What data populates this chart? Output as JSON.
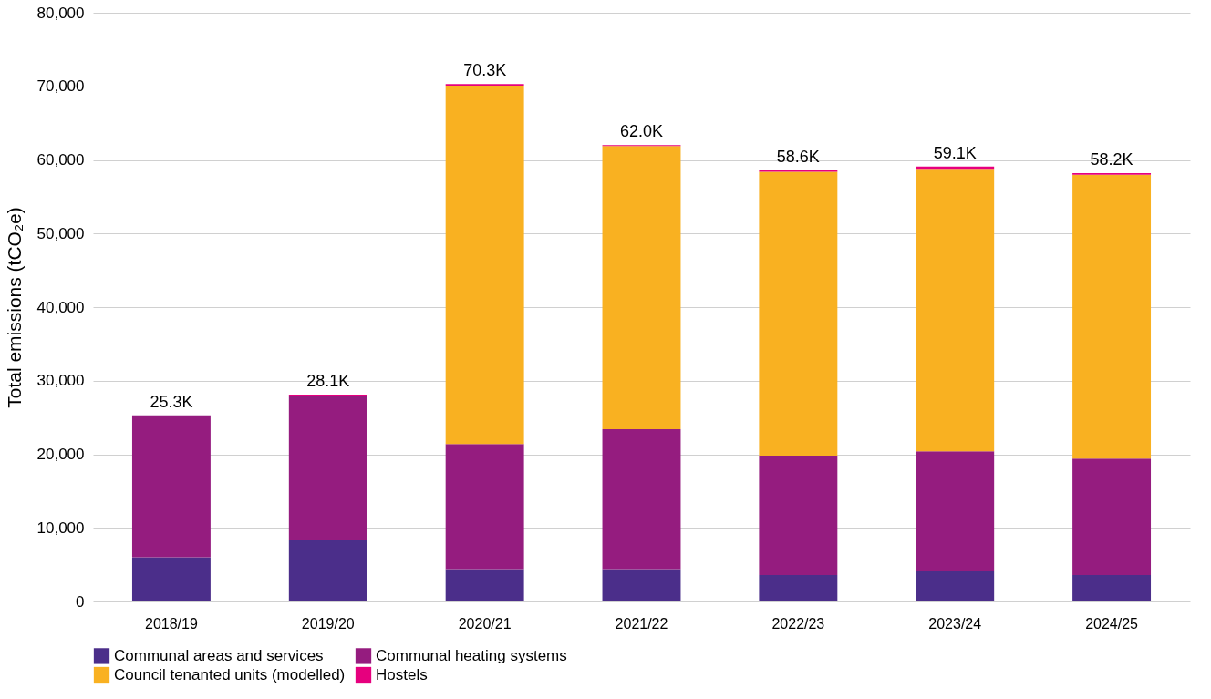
{
  "chart_data": {
    "type": "bar",
    "stacked": true,
    "ylabel": "Total emissions (tCO₂e)",
    "categories": [
      "2018/19",
      "2019/20",
      "2020/21",
      "2021/22",
      "2022/23",
      "2023/24",
      "2024/25"
    ],
    "series": [
      {
        "name": "Communal areas and services",
        "color": "#4b2e8a",
        "values": [
          6000,
          8300,
          4400,
          4400,
          3600,
          4100,
          3600
        ]
      },
      {
        "name": "Communal heating systems",
        "color": "#951c7f",
        "values": [
          19300,
          19600,
          17000,
          19000,
          16200,
          16300,
          15800
        ]
      },
      {
        "name": "Council tenanted units (modelled)",
        "color": "#f9b121",
        "values": [
          0,
          0,
          48700,
          38500,
          38600,
          38400,
          38600
        ]
      },
      {
        "name": "Hostels",
        "color": "#e6007e",
        "values": [
          0,
          200,
          200,
          100,
          200,
          300,
          200
        ]
      }
    ],
    "totals": [
      "25.3K",
      "28.1K",
      "70.3K",
      "62.0K",
      "58.6K",
      "59.1K",
      "58.2K"
    ],
    "ylim": [
      0,
      80000
    ],
    "yticks": [
      0,
      {
        "value": 10000,
        "label": "10,000"
      },
      {
        "value": 20000,
        "label": "20,000"
      },
      {
        "value": 30000,
        "label": "30,000"
      },
      {
        "value": 40000,
        "label": "40,000"
      },
      {
        "value": 50000,
        "label": "50,000"
      },
      {
        "value": 60000,
        "label": "60,000"
      },
      {
        "value": 70000,
        "label": "70,000"
      },
      {
        "value": 80000,
        "label": "80,000"
      }
    ],
    "grid": "y",
    "legend": "bottom"
  }
}
